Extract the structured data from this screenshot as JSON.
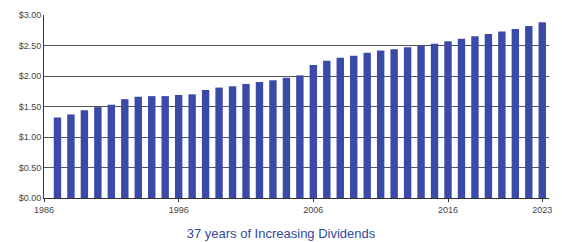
{
  "chart_data": {
    "type": "bar",
    "title": "37 years of Increasing Dividends",
    "x": [
      1987,
      1988,
      1989,
      1990,
      1991,
      1992,
      1993,
      1994,
      1995,
      1996,
      1997,
      1998,
      1999,
      2000,
      2001,
      2002,
      2003,
      2004,
      2005,
      2006,
      2007,
      2008,
      2009,
      2010,
      2011,
      2012,
      2013,
      2014,
      2015,
      2016,
      2017,
      2018,
      2019,
      2020,
      2021,
      2022,
      2023
    ],
    "values": [
      1.32,
      1.37,
      1.44,
      1.49,
      1.53,
      1.62,
      1.66,
      1.67,
      1.67,
      1.69,
      1.7,
      1.77,
      1.81,
      1.83,
      1.87,
      1.9,
      1.93,
      1.97,
      2.01,
      2.18,
      2.25,
      2.3,
      2.33,
      2.38,
      2.42,
      2.44,
      2.47,
      2.5,
      2.53,
      2.57,
      2.61,
      2.65,
      2.69,
      2.73,
      2.77,
      2.82,
      2.88
    ],
    "color": "#3b4aa8",
    "xlim": [
      1986,
      2023.5
    ],
    "xticks": [
      1986,
      1996,
      2006,
      2016,
      2023
    ],
    "ylim": [
      0,
      3
    ],
    "yticks": [
      {
        "value": 0,
        "label": "$0.00"
      },
      {
        "value": 0.5,
        "label": "$0.50"
      },
      {
        "value": 1,
        "label": "$1.00"
      },
      {
        "value": 1.5,
        "label": "$1.50"
      },
      {
        "value": 2,
        "label": "$2.00"
      },
      {
        "value": 2.5,
        "label": "$2.50"
      },
      {
        "value": 3,
        "label": "$3.00"
      }
    ],
    "grid": true
  }
}
